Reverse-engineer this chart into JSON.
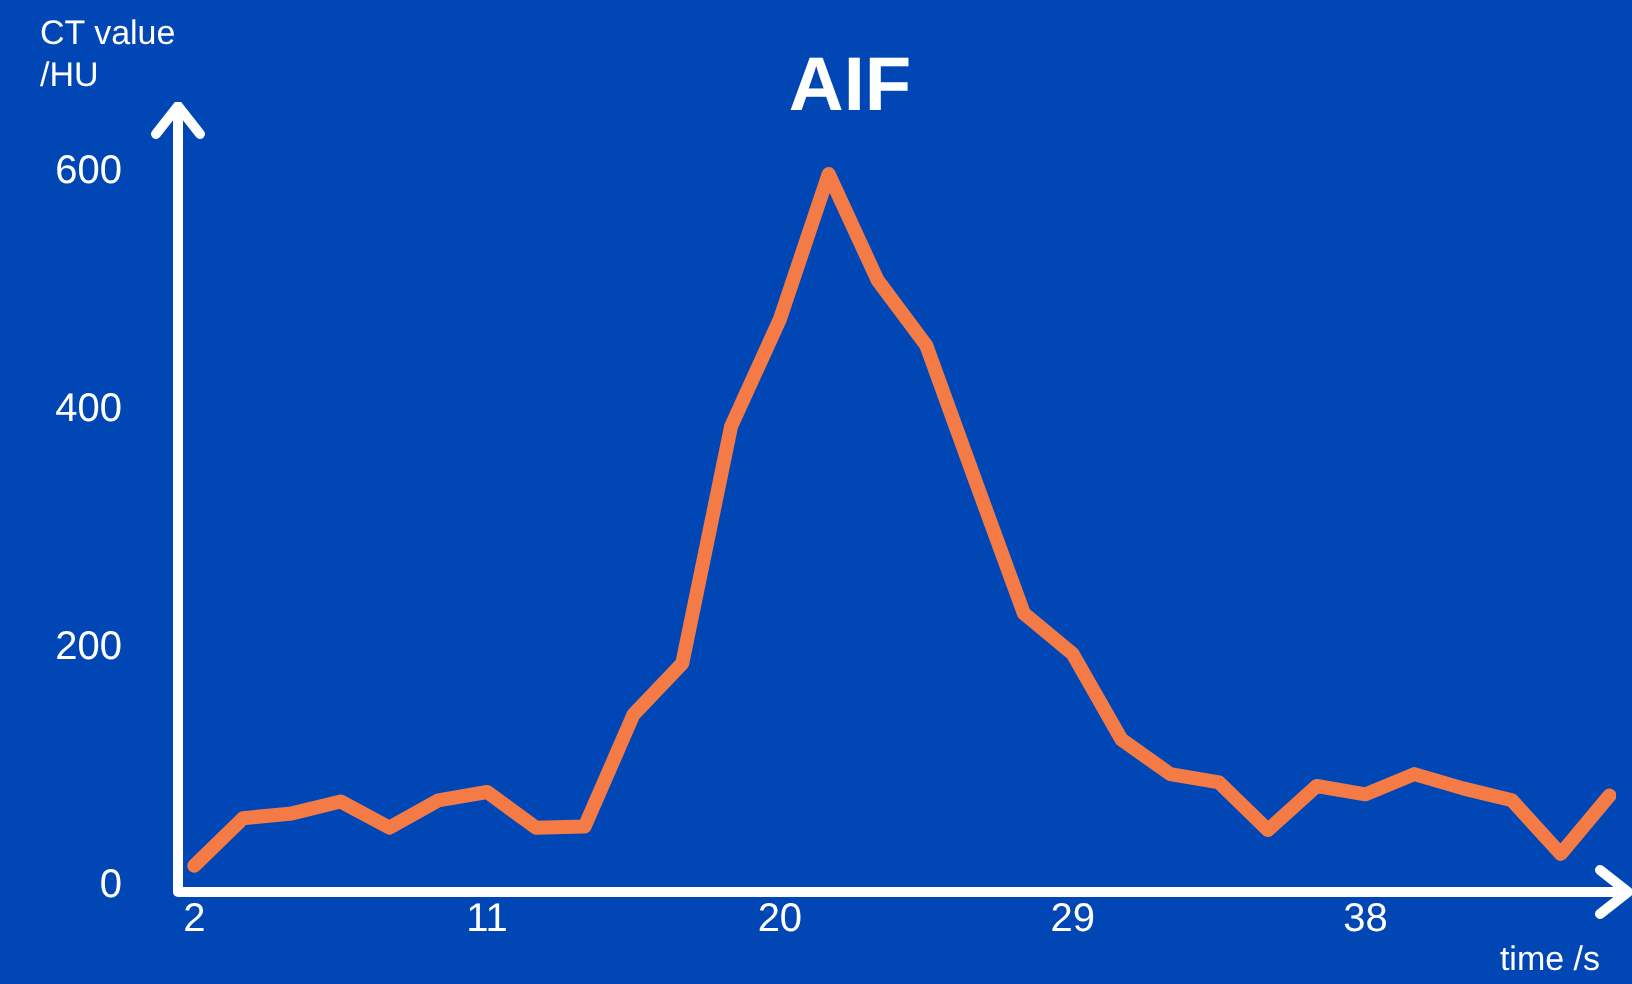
{
  "chart_data": {
    "type": "line",
    "title": "AIF",
    "xlabel": "time /s",
    "ylabel": "CT value\n/HU",
    "x": [
      2,
      3.5,
      5,
      6.5,
      8,
      9.5,
      11,
      12.5,
      14,
      15.5,
      17,
      18.5,
      20,
      21.5,
      23,
      24.5,
      26,
      27.5,
      29,
      30.5,
      32,
      33.5,
      35,
      36.5,
      38,
      39.5,
      41,
      42.5,
      44,
      45.5
    ],
    "series": [
      {
        "color": "#f47b45",
        "values": [
          17,
          57,
          61,
          71,
          49,
          72,
          79,
          49,
          50,
          144,
          187,
          386,
          476,
          598,
          509,
          454,
          341,
          229,
          195,
          123,
          94,
          87,
          47,
          84,
          77,
          94,
          82,
          72,
          27,
          76
        ]
      }
    ],
    "xlim": [
      1.5,
      45.7
    ],
    "xticks": [
      2,
      11,
      20,
      29,
      38
    ],
    "ylim": [
      -5,
      645
    ],
    "yticks": [
      0,
      200,
      400,
      600
    ],
    "marker": "none"
  }
}
